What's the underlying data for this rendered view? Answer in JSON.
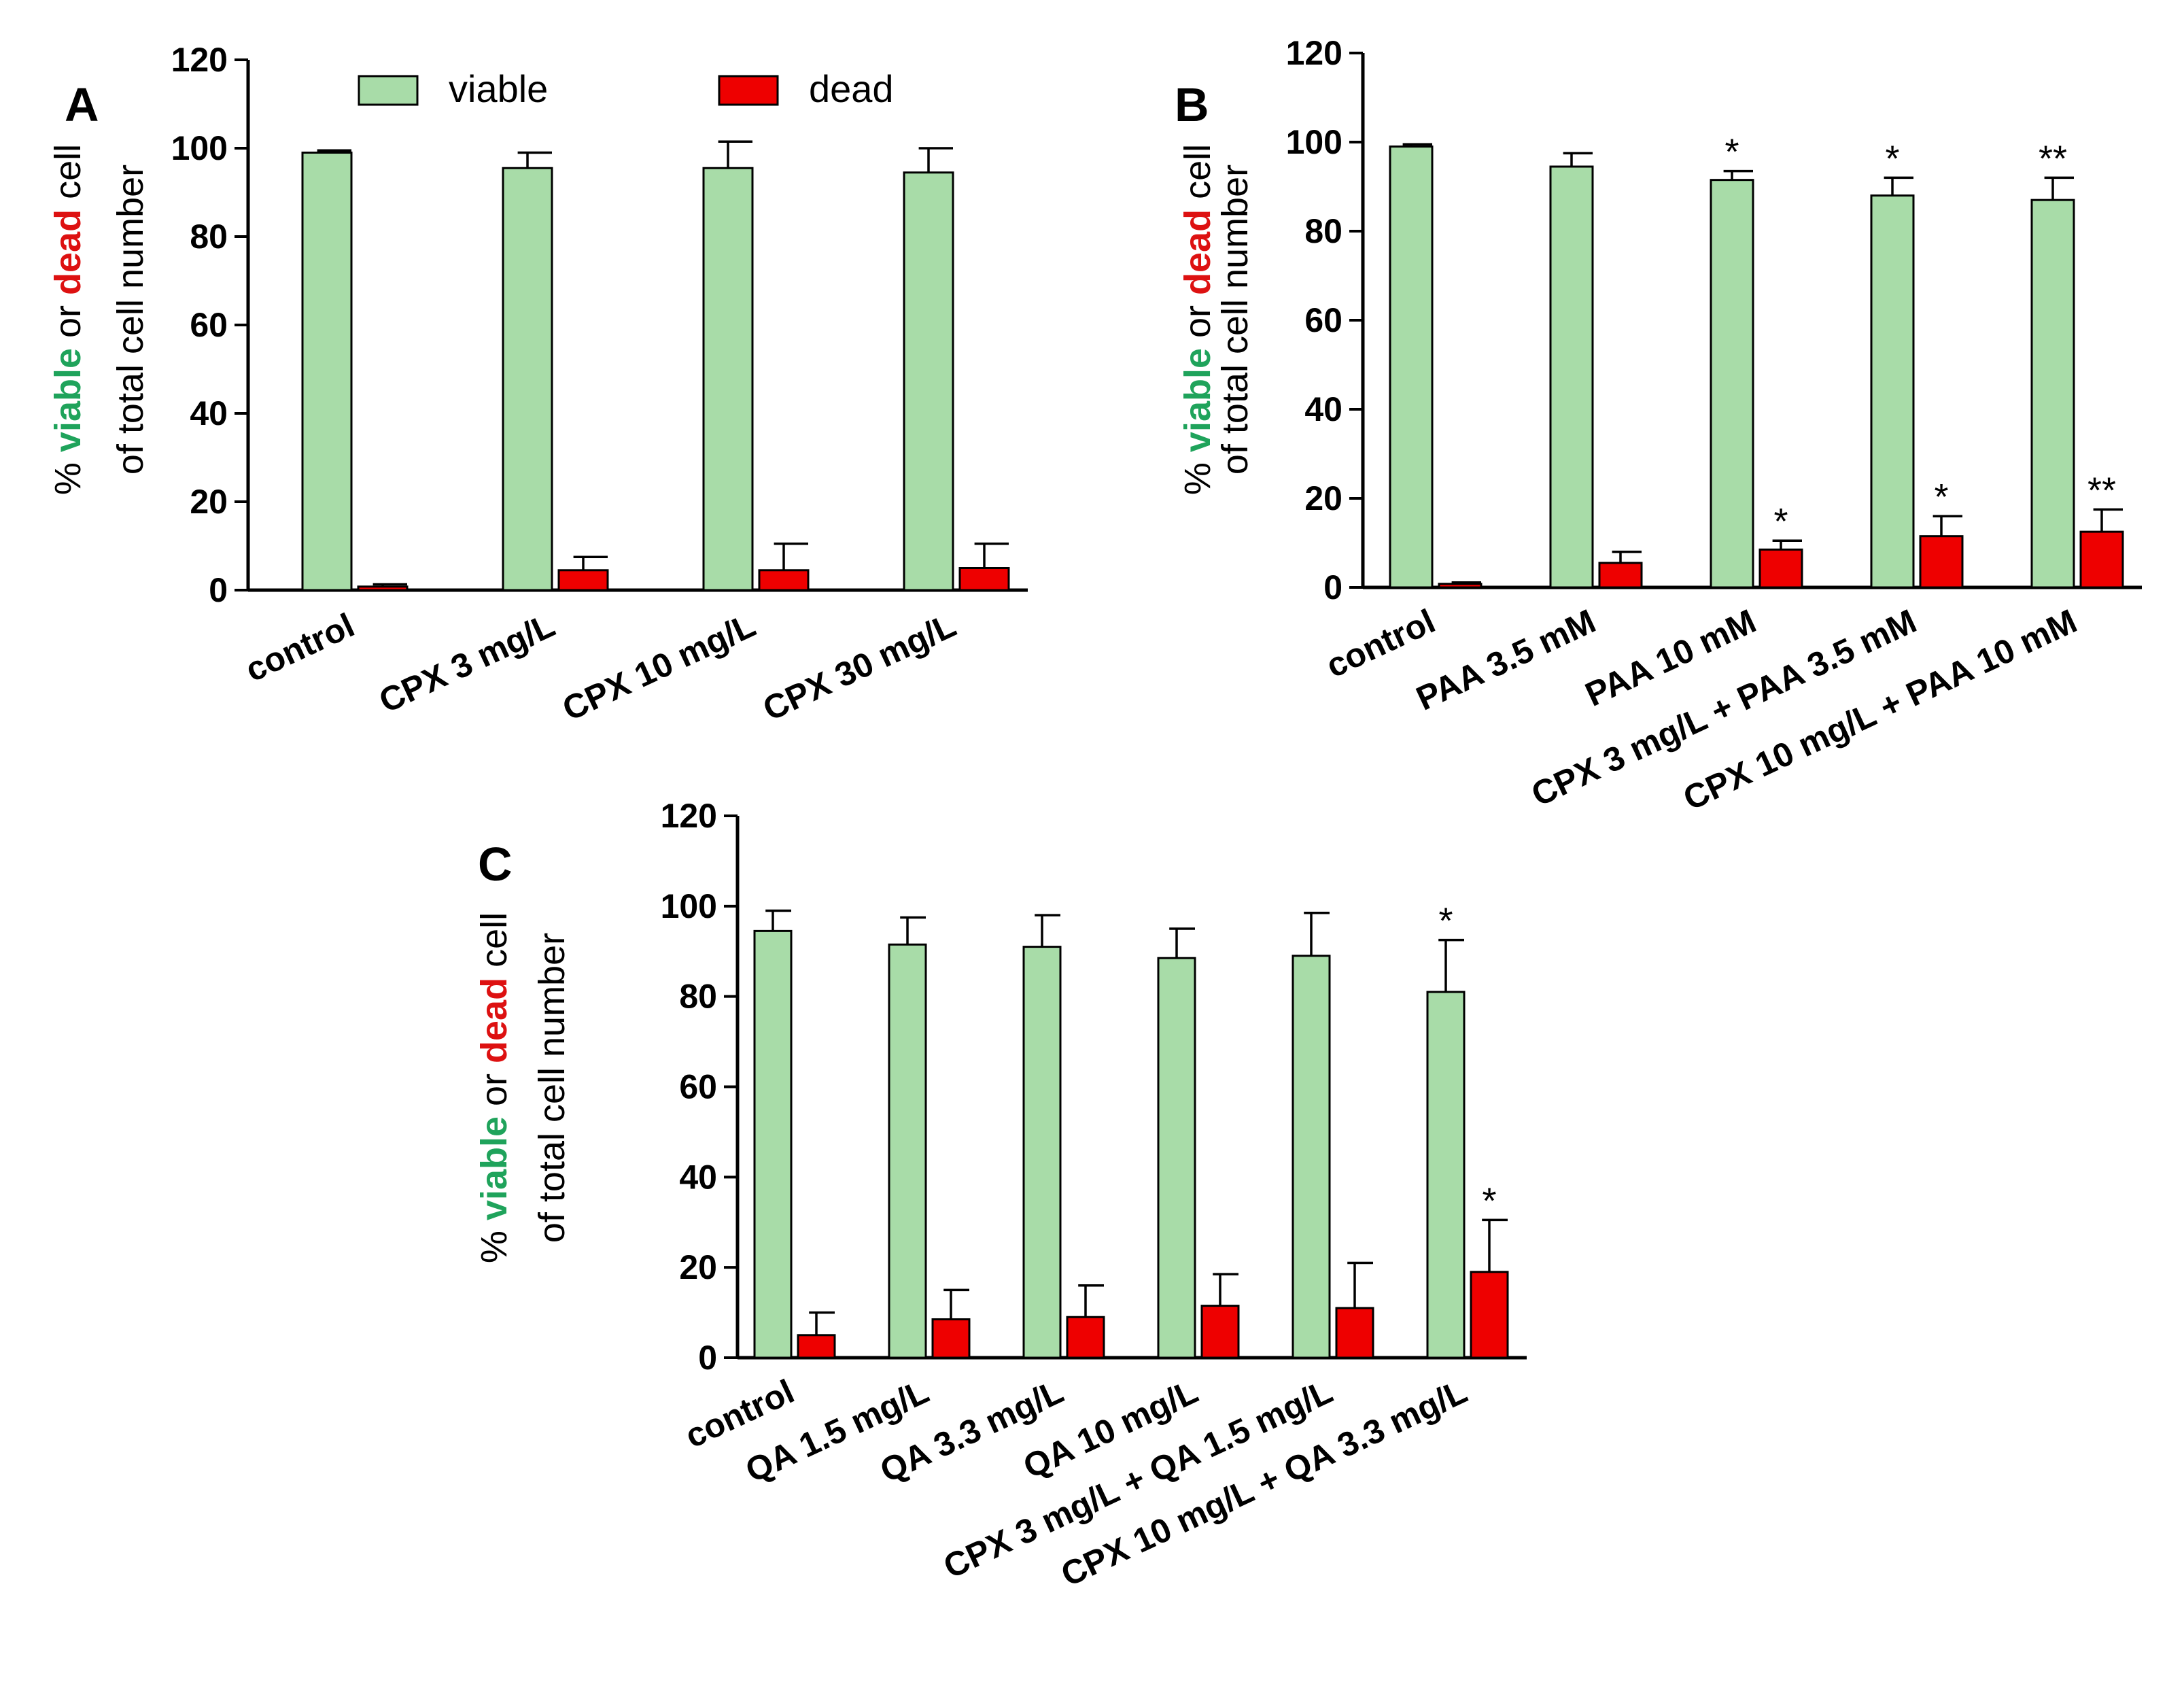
{
  "colors": {
    "viable": "#a8dca8",
    "dead": "#ee0000",
    "viable_text": "#1fa35b",
    "dead_text": "#dd1111"
  },
  "legend": {
    "viable": "viable",
    "dead": "dead"
  },
  "ylabel": {
    "pct": "% ",
    "viable": "viable",
    "or": " or ",
    "dead": "dead",
    "cell": " cell",
    "line2": "of total cell number"
  },
  "chart_data": [
    {
      "panel": "A",
      "type": "bar",
      "categories": [
        "control",
        "CPX 3 mg/L",
        "CPX 10 mg/L",
        "CPX 30 mg/L"
      ],
      "series": [
        {
          "name": "viable",
          "values": [
            99,
            95.5,
            95.5,
            94.5
          ],
          "errors": [
            0.5,
            3.5,
            6,
            5.5
          ],
          "annotations": [
            "",
            "",
            "",
            ""
          ]
        },
        {
          "name": "dead",
          "values": [
            0.8,
            4.5,
            4.5,
            5
          ],
          "errors": [
            0.5,
            3,
            6,
            5.5
          ],
          "annotations": [
            "",
            "",
            "",
            ""
          ]
        }
      ],
      "ylabel": "% viable or dead cell of total cell number",
      "yticks": [
        "0",
        "20",
        "40",
        "60",
        "80",
        "100",
        "120"
      ],
      "ylim": [
        0,
        120
      ],
      "legend": [
        "viable",
        "dead"
      ]
    },
    {
      "panel": "B",
      "type": "bar",
      "categories": [
        "control",
        "PAA 3.5 mM",
        "PAA 10 mM",
        "CPX 3 mg/L + PAA 3.5 mM",
        "CPX 10 mg/L + PAA 10 mM"
      ],
      "series": [
        {
          "name": "viable",
          "values": [
            99,
            94.5,
            91.5,
            88,
            87
          ],
          "errors": [
            0.5,
            3,
            2,
            4,
            5
          ],
          "annotations": [
            "",
            "",
            "*",
            "*",
            "**"
          ]
        },
        {
          "name": "dead",
          "values": [
            0.8,
            5.5,
            8.5,
            11.5,
            12.5
          ],
          "errors": [
            0.3,
            2.5,
            2,
            4.5,
            5
          ],
          "annotations": [
            "",
            "",
            "*",
            "*",
            "**"
          ]
        }
      ],
      "ylabel": "% viable or dead cell of total cell number",
      "yticks": [
        "0",
        "20",
        "40",
        "60",
        "80",
        "100",
        "120"
      ],
      "ylim": [
        0,
        120
      ]
    },
    {
      "panel": "C",
      "type": "bar",
      "categories": [
        "control",
        "QA 1.5 mg/L",
        "QA 3.3 mg/L",
        "QA 10 mg/L",
        "CPX 3 mg/L + QA 1.5 mg/L",
        "CPX 10 mg/L + QA 3.3 mg/L"
      ],
      "series": [
        {
          "name": "viable",
          "values": [
            94.5,
            91.5,
            91,
            88.5,
            89,
            81
          ],
          "errors": [
            4.5,
            6,
            7,
            6.5,
            9.5,
            11.5
          ],
          "annotations": [
            "",
            "",
            "",
            "",
            "",
            "*"
          ]
        },
        {
          "name": "dead",
          "values": [
            5,
            8.5,
            9,
            11.5,
            11,
            19
          ],
          "errors": [
            5,
            6.5,
            7,
            7,
            10,
            11.5
          ],
          "annotations": [
            "",
            "",
            "",
            "",
            "",
            "*"
          ]
        }
      ],
      "ylabel": "% viable or dead cell of total cell number",
      "yticks": [
        "0",
        "20",
        "40",
        "60",
        "80",
        "100",
        "120"
      ],
      "ylim": [
        0,
        120
      ]
    }
  ]
}
